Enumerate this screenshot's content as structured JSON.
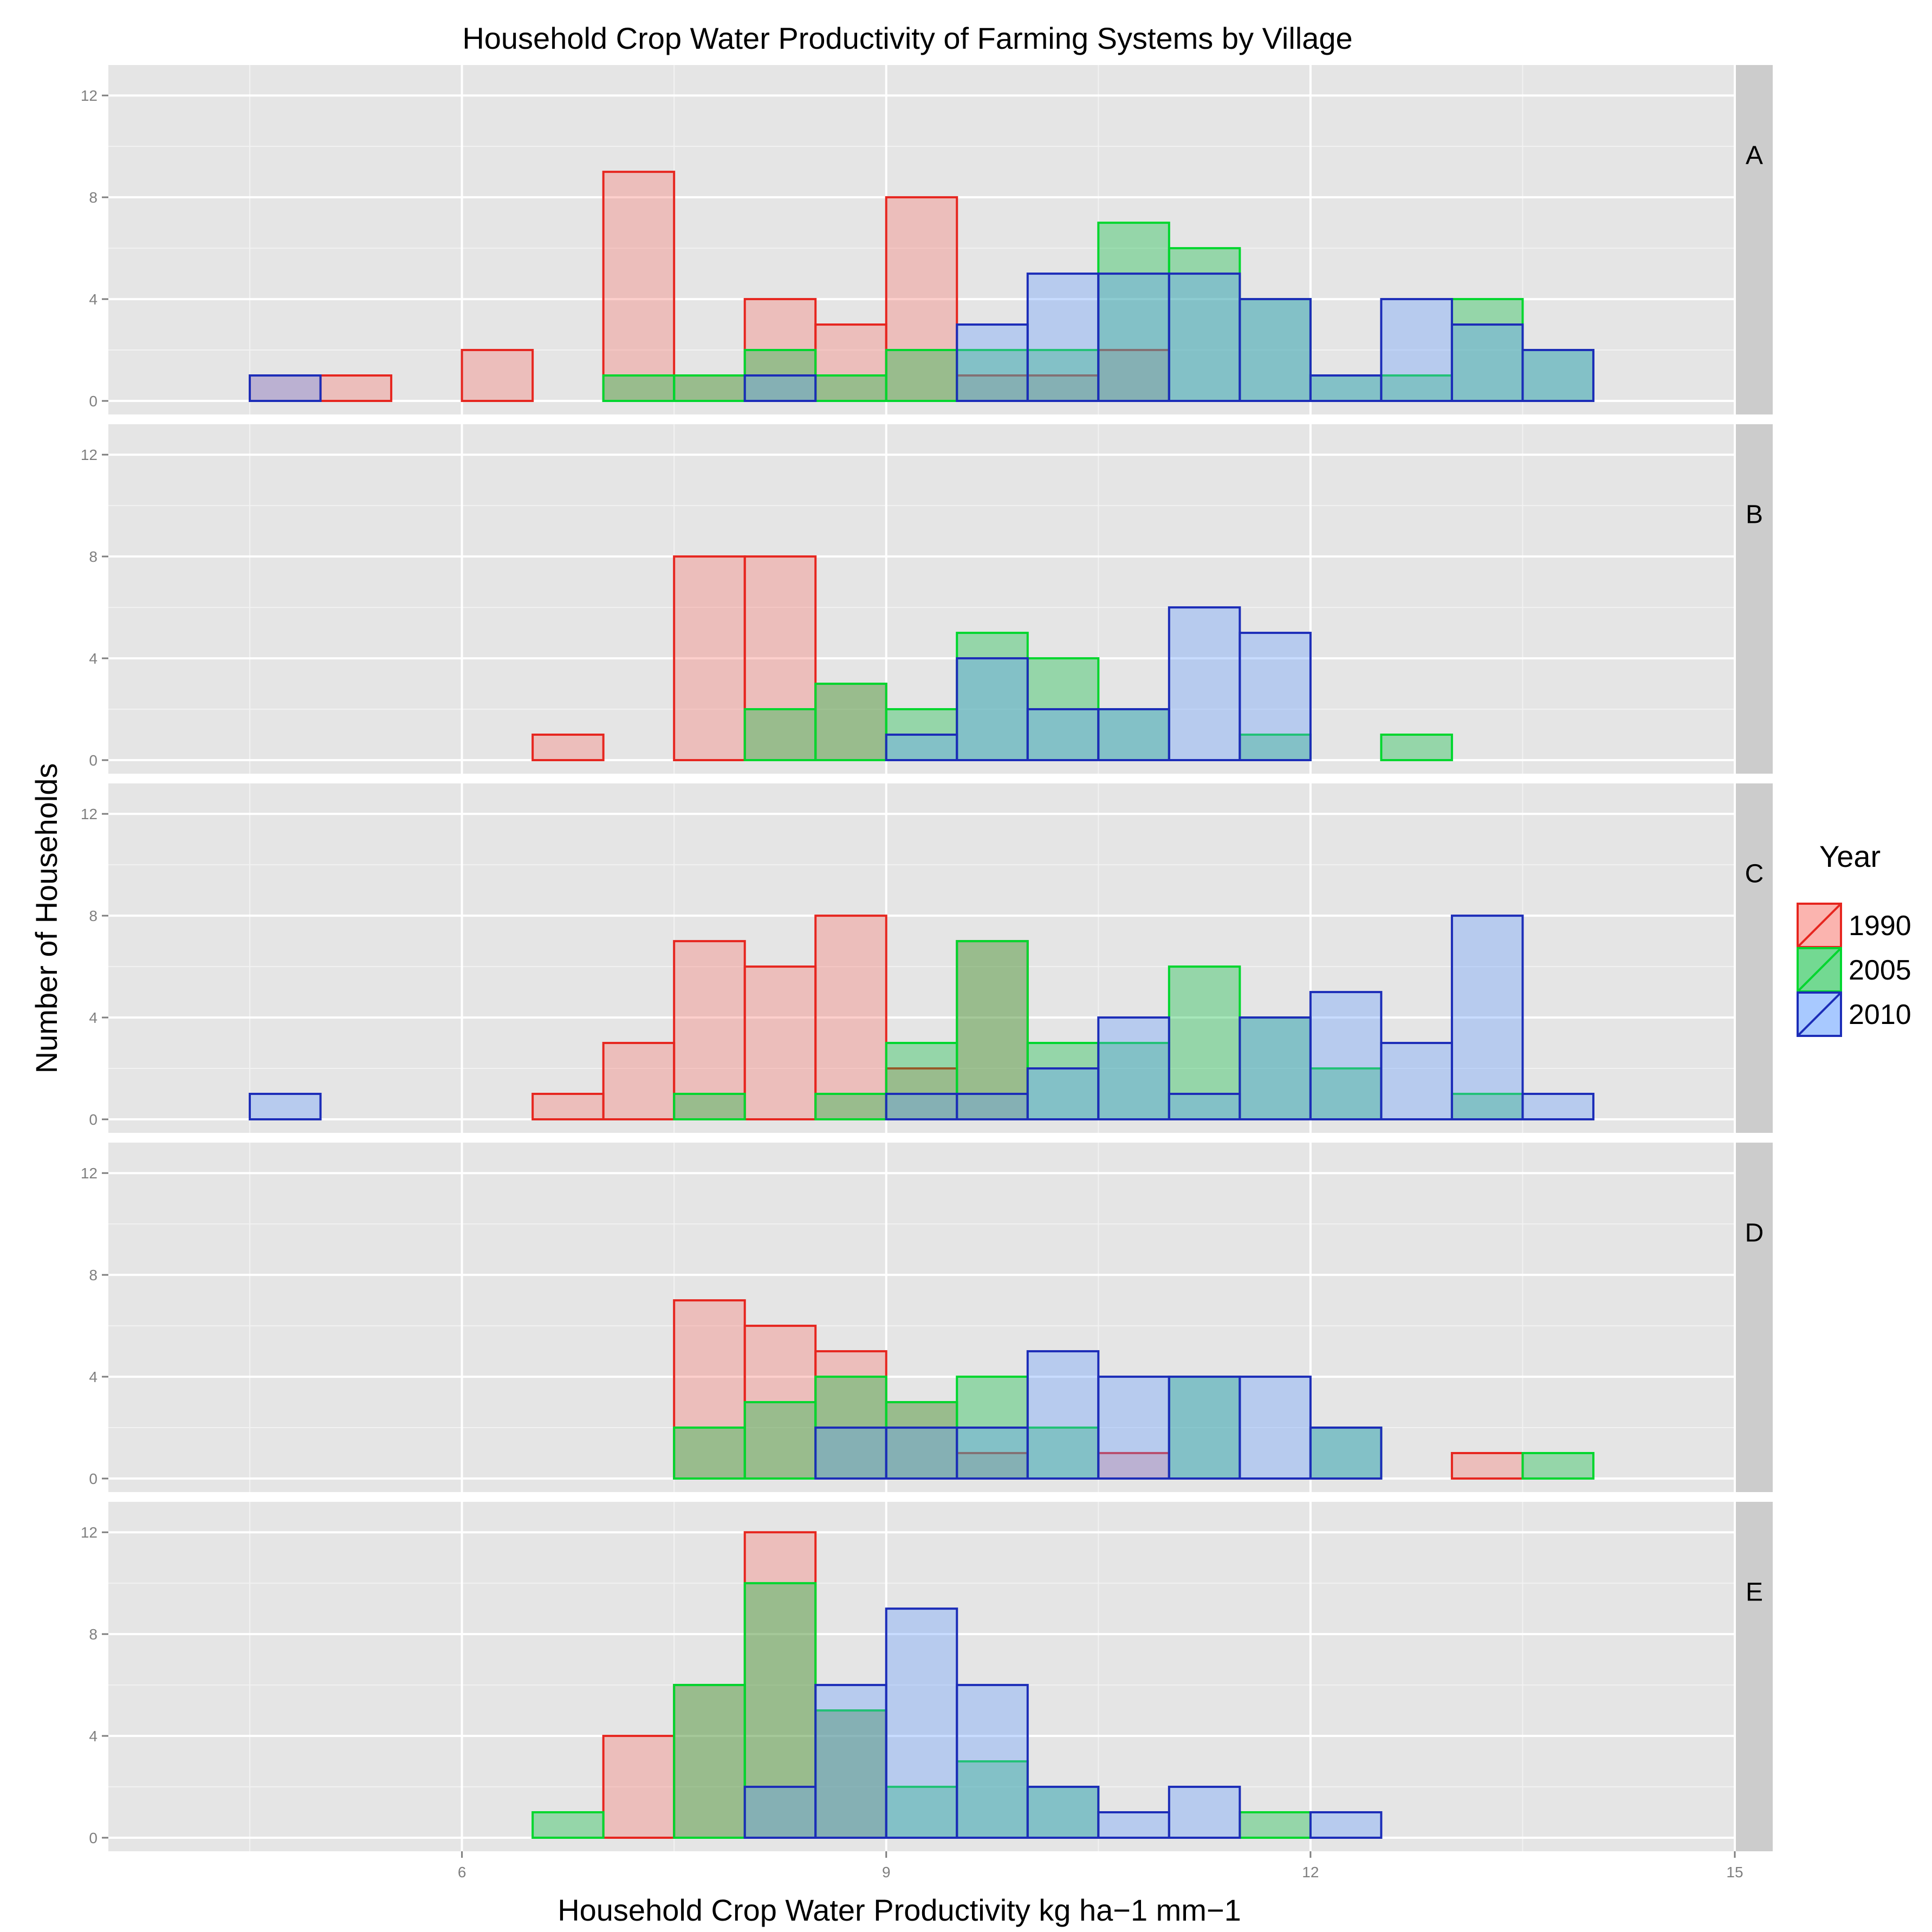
{
  "chart_data": {
    "type": "histogram",
    "title": "Household Crop Water Productivity of Farming Systems by Village",
    "xlabel": "Household Crop Water Productivity kg ha−1 mm−1",
    "ylabel": "Number of Households",
    "xlim": [
      3.5,
      15
    ],
    "ylim": [
      0,
      12.6
    ],
    "x_ticks": [
      6,
      9,
      12,
      15
    ],
    "y_ticks": [
      0,
      4,
      8,
      12
    ],
    "bin_width": 0.5,
    "bin_range": [
      4,
      14.5
    ],
    "grid": true,
    "legend": {
      "title": "Year",
      "position": "right",
      "entries": [
        {
          "label": "1990",
          "fill": "#F8766D",
          "stroke": "#E6261F"
        },
        {
          "label": "2005",
          "fill": "#00BA38",
          "stroke": "#00D62E"
        },
        {
          "label": "2010",
          "fill": "#619CFF",
          "stroke": "#1C2DB8"
        }
      ]
    },
    "panels": [
      {
        "label": "A",
        "series": [
          {
            "name": "1990",
            "bins": [
              {
                "start": 4.5,
                "count": 1
              },
              {
                "start": 5.0,
                "count": 1
              },
              {
                "start": 6.0,
                "count": 2
              },
              {
                "start": 7.0,
                "count": 9
              },
              {
                "start": 7.5,
                "count": 1
              },
              {
                "start": 8.0,
                "count": 4
              },
              {
                "start": 8.5,
                "count": 3
              },
              {
                "start": 9.0,
                "count": 8
              },
              {
                "start": 9.5,
                "count": 1
              },
              {
                "start": 10.0,
                "count": 1
              },
              {
                "start": 10.5,
                "count": 2
              }
            ]
          },
          {
            "name": "2005",
            "bins": [
              {
                "start": 7.0,
                "count": 1
              },
              {
                "start": 7.5,
                "count": 1
              },
              {
                "start": 8.0,
                "count": 2
              },
              {
                "start": 8.5,
                "count": 1
              },
              {
                "start": 9.0,
                "count": 2
              },
              {
                "start": 9.5,
                "count": 2
              },
              {
                "start": 10.0,
                "count": 2
              },
              {
                "start": 10.5,
                "count": 7
              },
              {
                "start": 11.0,
                "count": 6
              },
              {
                "start": 11.5,
                "count": 4
              },
              {
                "start": 12.0,
                "count": 1
              },
              {
                "start": 12.5,
                "count": 1
              },
              {
                "start": 13.0,
                "count": 4
              },
              {
                "start": 13.5,
                "count": 2
              }
            ]
          },
          {
            "name": "2010",
            "bins": [
              {
                "start": 4.5,
                "count": 1
              },
              {
                "start": 8.0,
                "count": 1
              },
              {
                "start": 9.5,
                "count": 3
              },
              {
                "start": 10.0,
                "count": 5
              },
              {
                "start": 10.5,
                "count": 5
              },
              {
                "start": 11.0,
                "count": 5
              },
              {
                "start": 11.5,
                "count": 4
              },
              {
                "start": 12.0,
                "count": 1
              },
              {
                "start": 12.5,
                "count": 4
              },
              {
                "start": 13.0,
                "count": 3
              },
              {
                "start": 13.5,
                "count": 2
              }
            ]
          }
        ]
      },
      {
        "label": "B",
        "series": [
          {
            "name": "1990",
            "bins": [
              {
                "start": 6.5,
                "count": 1
              },
              {
                "start": 7.5,
                "count": 8
              },
              {
                "start": 8.0,
                "count": 8
              },
              {
                "start": 8.5,
                "count": 3
              }
            ]
          },
          {
            "name": "2005",
            "bins": [
              {
                "start": 8.0,
                "count": 2
              },
              {
                "start": 8.5,
                "count": 3
              },
              {
                "start": 9.0,
                "count": 2
              },
              {
                "start": 9.5,
                "count": 5
              },
              {
                "start": 10.0,
                "count": 4
              },
              {
                "start": 10.5,
                "count": 2
              },
              {
                "start": 11.5,
                "count": 1
              },
              {
                "start": 12.5,
                "count": 1
              }
            ]
          },
          {
            "name": "2010",
            "bins": [
              {
                "start": 9.0,
                "count": 1
              },
              {
                "start": 9.5,
                "count": 4
              },
              {
                "start": 10.0,
                "count": 2
              },
              {
                "start": 10.5,
                "count": 2
              },
              {
                "start": 11.0,
                "count": 6
              },
              {
                "start": 11.5,
                "count": 5
              }
            ]
          }
        ]
      },
      {
        "label": "C",
        "series": [
          {
            "name": "1990",
            "bins": [
              {
                "start": 6.5,
                "count": 1
              },
              {
                "start": 7.0,
                "count": 3
              },
              {
                "start": 7.5,
                "count": 7
              },
              {
                "start": 8.0,
                "count": 6
              },
              {
                "start": 8.5,
                "count": 8
              },
              {
                "start": 9.0,
                "count": 2
              },
              {
                "start": 9.5,
                "count": 7
              }
            ]
          },
          {
            "name": "2005",
            "bins": [
              {
                "start": 7.5,
                "count": 1
              },
              {
                "start": 8.5,
                "count": 1
              },
              {
                "start": 9.0,
                "count": 3
              },
              {
                "start": 9.5,
                "count": 7
              },
              {
                "start": 10.0,
                "count": 3
              },
              {
                "start": 10.5,
                "count": 3
              },
              {
                "start": 11.0,
                "count": 6
              },
              {
                "start": 11.5,
                "count": 4
              },
              {
                "start": 12.0,
                "count": 2
              },
              {
                "start": 13.0,
                "count": 1
              }
            ]
          },
          {
            "name": "2010",
            "bins": [
              {
                "start": 4.5,
                "count": 1
              },
              {
                "start": 9.0,
                "count": 1
              },
              {
                "start": 9.5,
                "count": 1
              },
              {
                "start": 10.0,
                "count": 2
              },
              {
                "start": 10.5,
                "count": 4
              },
              {
                "start": 11.0,
                "count": 1
              },
              {
                "start": 11.5,
                "count": 4
              },
              {
                "start": 12.0,
                "count": 5
              },
              {
                "start": 12.5,
                "count": 3
              },
              {
                "start": 13.0,
                "count": 8
              },
              {
                "start": 13.5,
                "count": 1
              }
            ]
          }
        ]
      },
      {
        "label": "D",
        "series": [
          {
            "name": "1990",
            "bins": [
              {
                "start": 7.5,
                "count": 7
              },
              {
                "start": 8.0,
                "count": 6
              },
              {
                "start": 8.5,
                "count": 5
              },
              {
                "start": 9.0,
                "count": 3
              },
              {
                "start": 9.5,
                "count": 1
              },
              {
                "start": 10.5,
                "count": 1
              },
              {
                "start": 13.0,
                "count": 1
              }
            ]
          },
          {
            "name": "2005",
            "bins": [
              {
                "start": 7.5,
                "count": 2
              },
              {
                "start": 8.0,
                "count": 3
              },
              {
                "start": 8.5,
                "count": 4
              },
              {
                "start": 9.0,
                "count": 3
              },
              {
                "start": 9.5,
                "count": 4
              },
              {
                "start": 10.0,
                "count": 2
              },
              {
                "start": 11.0,
                "count": 4
              },
              {
                "start": 12.0,
                "count": 2
              },
              {
                "start": 13.5,
                "count": 1
              }
            ]
          },
          {
            "name": "2010",
            "bins": [
              {
                "start": 8.5,
                "count": 2
              },
              {
                "start": 9.0,
                "count": 2
              },
              {
                "start": 9.5,
                "count": 2
              },
              {
                "start": 10.0,
                "count": 5
              },
              {
                "start": 10.5,
                "count": 4
              },
              {
                "start": 11.0,
                "count": 4
              },
              {
                "start": 11.5,
                "count": 4
              },
              {
                "start": 12.0,
                "count": 2
              }
            ]
          }
        ]
      },
      {
        "label": "E",
        "series": [
          {
            "name": "1990",
            "bins": [
              {
                "start": 7.0,
                "count": 4
              },
              {
                "start": 7.5,
                "count": 6
              },
              {
                "start": 8.0,
                "count": 12
              },
              {
                "start": 8.5,
                "count": 5
              }
            ]
          },
          {
            "name": "2005",
            "bins": [
              {
                "start": 6.5,
                "count": 1
              },
              {
                "start": 7.5,
                "count": 6
              },
              {
                "start": 8.0,
                "count": 10
              },
              {
                "start": 8.5,
                "count": 5
              },
              {
                "start": 9.0,
                "count": 2
              },
              {
                "start": 9.5,
                "count": 3
              },
              {
                "start": 10.0,
                "count": 2
              },
              {
                "start": 11.5,
                "count": 1
              }
            ]
          },
          {
            "name": "2010",
            "bins": [
              {
                "start": 8.0,
                "count": 2
              },
              {
                "start": 8.5,
                "count": 6
              },
              {
                "start": 9.0,
                "count": 9
              },
              {
                "start": 9.5,
                "count": 6
              },
              {
                "start": 10.0,
                "count": 2
              },
              {
                "start": 10.5,
                "count": 1
              },
              {
                "start": 11.0,
                "count": 2
              },
              {
                "start": 12.0,
                "count": 1
              }
            ]
          }
        ]
      }
    ]
  }
}
